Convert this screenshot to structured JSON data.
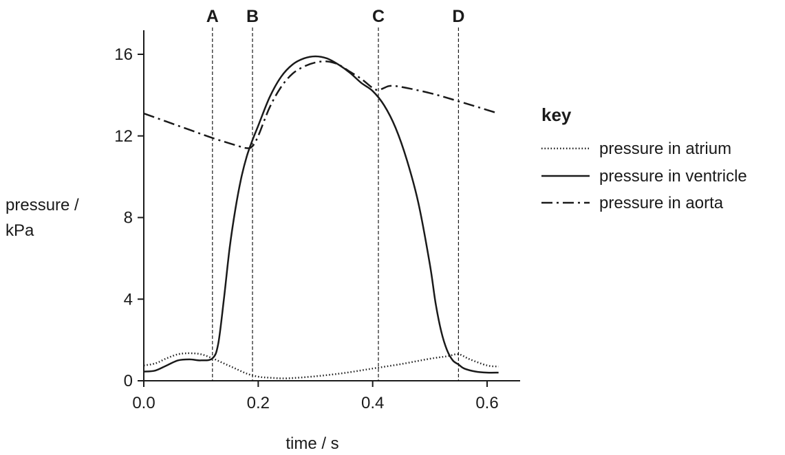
{
  "chart_data": {
    "type": "line",
    "ylabel_line1": "pressure /",
    "ylabel_line2": "kPa",
    "xlabel": "time / s",
    "xlim": [
      0,
      0.66
    ],
    "ylim": [
      0,
      17.2
    ],
    "x_ticks": [
      0.0,
      0.2,
      0.4,
      0.6
    ],
    "x_tick_labels": [
      "0.0",
      "0.2",
      "0.4",
      "0.6"
    ],
    "y_ticks": [
      0,
      4,
      8,
      12,
      16
    ],
    "y_tick_labels": [
      "0",
      "4",
      "8",
      "12",
      "16"
    ],
    "markers": [
      {
        "label": "A",
        "x": 0.12
      },
      {
        "label": "B",
        "x": 0.19
      },
      {
        "label": "C",
        "x": 0.41
      },
      {
        "label": "D",
        "x": 0.55
      }
    ],
    "legend_title": "key",
    "legend_placement": "right",
    "series": [
      {
        "name": "pressure in atrium",
        "style": "dotted",
        "x": [
          0.0,
          0.02,
          0.04,
          0.06,
          0.08,
          0.1,
          0.12,
          0.14,
          0.16,
          0.18,
          0.2,
          0.22,
          0.25,
          0.3,
          0.35,
          0.4,
          0.45,
          0.5,
          0.53,
          0.55,
          0.57,
          0.6,
          0.62
        ],
        "y": [
          0.75,
          0.85,
          1.1,
          1.3,
          1.35,
          1.3,
          1.1,
          0.85,
          0.6,
          0.35,
          0.2,
          0.15,
          0.12,
          0.22,
          0.38,
          0.6,
          0.82,
          1.08,
          1.2,
          1.3,
          1.05,
          0.75,
          0.7
        ]
      },
      {
        "name": "pressure in ventricle",
        "style": "solid",
        "x": [
          0.0,
          0.02,
          0.04,
          0.06,
          0.08,
          0.1,
          0.12,
          0.13,
          0.14,
          0.15,
          0.16,
          0.17,
          0.18,
          0.19,
          0.2,
          0.22,
          0.24,
          0.26,
          0.28,
          0.3,
          0.32,
          0.34,
          0.36,
          0.38,
          0.4,
          0.42,
          0.44,
          0.46,
          0.48,
          0.5,
          0.51,
          0.52,
          0.53,
          0.54,
          0.55,
          0.56,
          0.58,
          0.6,
          0.62
        ],
        "y": [
          0.45,
          0.5,
          0.75,
          1.0,
          1.05,
          1.0,
          1.1,
          1.8,
          4.0,
          6.5,
          8.4,
          9.9,
          11.0,
          11.8,
          12.5,
          13.9,
          14.9,
          15.5,
          15.8,
          15.9,
          15.8,
          15.5,
          15.1,
          14.6,
          14.2,
          13.5,
          12.4,
          10.8,
          8.7,
          5.7,
          3.8,
          2.4,
          1.5,
          1.0,
          0.8,
          0.6,
          0.45,
          0.4,
          0.4
        ]
      },
      {
        "name": "pressure in aorta",
        "style": "dash-dot",
        "x": [
          0.0,
          0.04,
          0.08,
          0.12,
          0.16,
          0.18,
          0.19,
          0.2,
          0.22,
          0.24,
          0.26,
          0.28,
          0.3,
          0.32,
          0.34,
          0.36,
          0.38,
          0.4,
          0.41,
          0.42,
          0.43,
          0.45,
          0.5,
          0.55,
          0.62
        ],
        "y": [
          13.1,
          12.7,
          12.3,
          11.9,
          11.55,
          11.4,
          11.5,
          12.0,
          13.4,
          14.4,
          15.05,
          15.4,
          15.6,
          15.65,
          15.5,
          15.15,
          14.8,
          14.35,
          14.25,
          14.35,
          14.45,
          14.4,
          14.1,
          13.7,
          13.1
        ]
      }
    ]
  }
}
